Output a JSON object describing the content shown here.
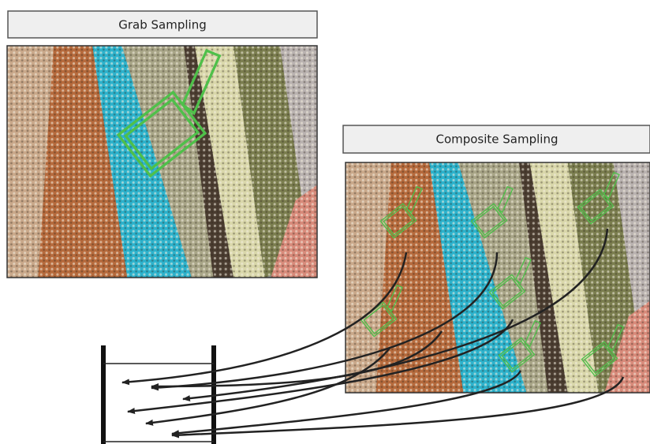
{
  "grab": {
    "label": "Grab Sampling"
  },
  "composite": {
    "label": "Composite Sampling"
  }
}
